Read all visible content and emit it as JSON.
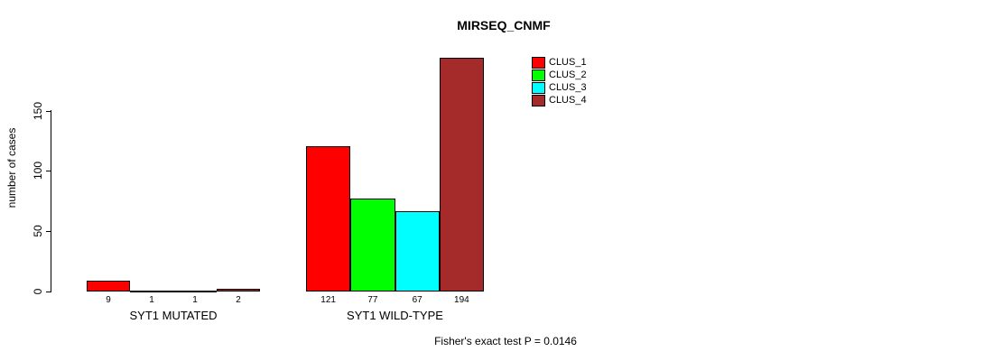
{
  "chart_data": {
    "type": "bar",
    "title": "MIRSEQ_CNMF",
    "xlabel": "",
    "ylabel": "number of cases",
    "yticks": [
      0,
      50,
      100,
      150
    ],
    "ylim": [
      0,
      200
    ],
    "grid": false,
    "legend_position": "top-right",
    "groups": [
      "SYT1 MUTATED",
      "SYT1 WILD-TYPE"
    ],
    "series": [
      {
        "name": "CLUS_1",
        "color": "#ff0000",
        "values": [
          9,
          121
        ]
      },
      {
        "name": "CLUS_2",
        "color": "#00ff00",
        "values": [
          1,
          77
        ]
      },
      {
        "name": "CLUS_3",
        "color": "#00ffff",
        "values": [
          1,
          67
        ]
      },
      {
        "name": "CLUS_4",
        "color": "#a52a2a",
        "values": [
          2,
          194
        ]
      }
    ],
    "bar_value_labels": [
      [
        9,
        1,
        1,
        2
      ],
      [
        121,
        77,
        67,
        194
      ]
    ],
    "annotation": "Fisher's exact test P = 0.0146"
  }
}
